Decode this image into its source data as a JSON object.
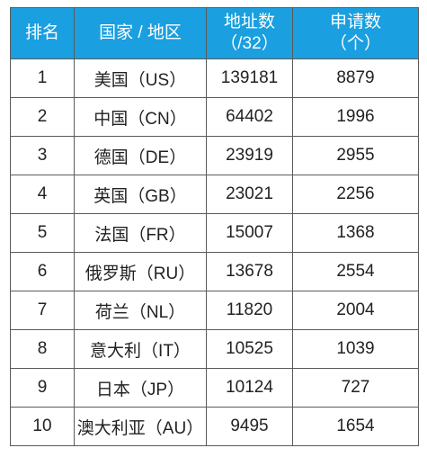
{
  "table": {
    "headers": {
      "rank": "排名",
      "country": "国家 / 地区",
      "addresses_line1": "地址数",
      "addresses_line2": "（/32）",
      "applications_line1": "申请数",
      "applications_line2": "（个）"
    },
    "rows": [
      {
        "rank": "1",
        "country": "美国（US）",
        "addresses": "139181",
        "applications": "8879"
      },
      {
        "rank": "2",
        "country": "中国（CN）",
        "addresses": "64402",
        "applications": "1996"
      },
      {
        "rank": "3",
        "country": "德国（DE）",
        "addresses": "23919",
        "applications": "2955"
      },
      {
        "rank": "4",
        "country": "英国（GB）",
        "addresses": "23021",
        "applications": "2256"
      },
      {
        "rank": "5",
        "country": "法国（FR）",
        "addresses": "15007",
        "applications": "1368"
      },
      {
        "rank": "6",
        "country": "俄罗斯（RU）",
        "addresses": "13678",
        "applications": "2554"
      },
      {
        "rank": "7",
        "country": "荷兰（NL）",
        "addresses": "11820",
        "applications": "2004"
      },
      {
        "rank": "8",
        "country": "意大利（IT）",
        "addresses": "10525",
        "applications": "1039"
      },
      {
        "rank": "9",
        "country": "日本（JP）",
        "addresses": "10124",
        "applications": "727"
      },
      {
        "rank": "10",
        "country": "澳大利亚（AU）",
        "addresses": "9495",
        "applications": "1654"
      }
    ]
  },
  "colors": {
    "header_bg": "#1a9fe0",
    "header_text": "#ffffff",
    "border": "#5a5a5a"
  }
}
